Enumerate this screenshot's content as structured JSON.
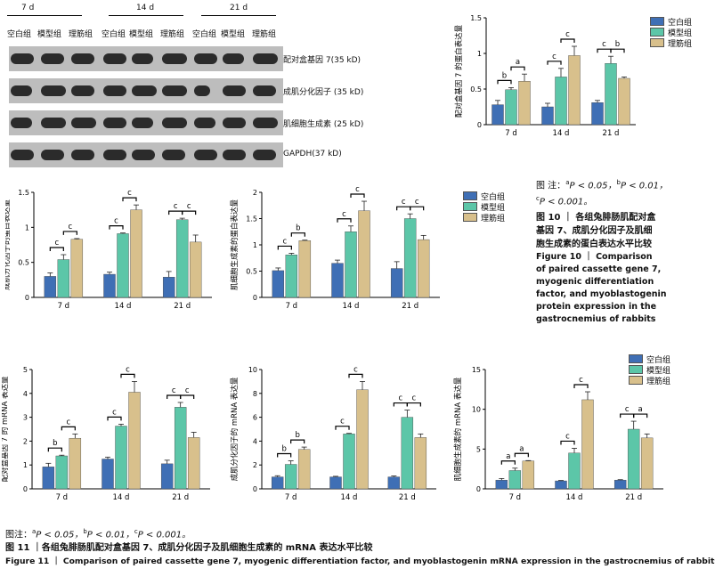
{
  "blot": {
    "time_labels": [
      "7 d",
      "14 d",
      "21 d"
    ],
    "group_labels": [
      "空白组",
      "模型组",
      "理筋组",
      "空白组",
      "模型组",
      "理筋组",
      "空白组",
      "模型组",
      "理筋组"
    ],
    "row_labels": [
      "配对盒基因 7(35 kD)",
      "成肌分化因子 (35 kD)",
      "肌细胞生成素 (25 kD)",
      "GAPDH(37 kD)"
    ]
  },
  "legend": {
    "items": [
      "空白组",
      "模型组",
      "理筋组"
    ],
    "colors": [
      "#3f6fb5",
      "#5cc6a8",
      "#d8c08c"
    ]
  },
  "fig10_caption": {
    "note_prefix": "图 注：",
    "note_a": "P < 0.05，",
    "note_b": "P < 0.01，",
    "note_c": "P < 0.001。",
    "sup_a": "a",
    "sup_b": "b",
    "sup_c": "c",
    "title_cn": "图 10 ｜ 各组兔腓肠肌配对盒基因 7、成肌分化因子及肌细胞生成素的蛋白表达水平比较",
    "title_cn_1": "图 10 ｜ 各组兔腓肠肌配对盒",
    "title_cn_2": "基因 7、成肌分化因子及肌细",
    "title_cn_3": "胞生成素的蛋白表达水平比较",
    "title_en_1": "Figure 10 ｜ Comparison",
    "title_en_2": "of paired cassette gene 7,",
    "title_en_3": "myogenic differentiation",
    "title_en_4": "factor, and myoblastogenin",
    "title_en_5": "protein expression in the",
    "title_en_6": "gastrocnemius of rabbits"
  },
  "fig11_caption": {
    "note_prefix": "图注：",
    "note_a": "P < 0.05，",
    "note_b": "P < 0.01，",
    "note_c": "P < 0.001。",
    "sup_a": "a",
    "sup_b": "b",
    "sup_c": "c",
    "title_cn": "图 11 ｜各组兔腓肠肌配对盒基因 7、成肌分化因子及肌细胞生成素的 mRNA 表达水平比较",
    "title_en": "Figure 11 ｜ Comparison of paired cassette gene 7, myogenic differentiation factor, and myoblastogenin mRNA expression in the gastrocnemius of rabbits"
  },
  "chart_data": [
    {
      "type": "bar",
      "ylabel": "配对盒基因 7 的蛋白表达量",
      "categories": [
        "7 d",
        "14 d",
        "21 d"
      ],
      "ylim": [
        0,
        1.5
      ],
      "yticks": [
        0,
        0.5,
        1.0,
        1.5
      ],
      "series": [
        {
          "name": "空白组",
          "values": [
            0.28,
            0.25,
            0.31
          ],
          "err": [
            0.06,
            0.05,
            0.03
          ]
        },
        {
          "name": "模型组",
          "values": [
            0.49,
            0.67,
            0.86
          ],
          "err": [
            0.03,
            0.12,
            0.1
          ]
        },
        {
          "name": "理筋组",
          "values": [
            0.61,
            0.97,
            0.65
          ],
          "err": [
            0.1,
            0.13,
            0.02
          ]
        }
      ],
      "sig": [
        {
          "cat": 0,
          "from": 0,
          "to": 1,
          "label": "b"
        },
        {
          "cat": 0,
          "from": 1,
          "to": 2,
          "label": "a"
        },
        {
          "cat": 1,
          "from": 0,
          "to": 1,
          "label": "c"
        },
        {
          "cat": 1,
          "from": 1,
          "to": 2,
          "label": "c"
        },
        {
          "cat": 2,
          "from": 0,
          "to": 1,
          "label": "c"
        },
        {
          "cat": 2,
          "from": 1,
          "to": 2,
          "label": "b"
        }
      ]
    },
    {
      "type": "bar",
      "ylabel": "成肌分化因子的蛋白表达量",
      "categories": [
        "7 d",
        "14 d",
        "21 d"
      ],
      "ylim": [
        0,
        1.5
      ],
      "yticks": [
        0,
        0.5,
        1.0,
        1.5
      ],
      "series": [
        {
          "name": "空白组",
          "values": [
            0.3,
            0.33,
            0.29
          ],
          "err": [
            0.05,
            0.03,
            0.08
          ]
        },
        {
          "name": "模型组",
          "values": [
            0.54,
            0.91,
            1.11
          ],
          "err": [
            0.07,
            0.01,
            0.02
          ]
        },
        {
          "name": "理筋组",
          "values": [
            0.83,
            1.25,
            0.79
          ],
          "err": [
            0.01,
            0.07,
            0.1
          ]
        }
      ],
      "sig": [
        {
          "cat": 0,
          "from": 0,
          "to": 1,
          "label": "c"
        },
        {
          "cat": 0,
          "from": 1,
          "to": 2,
          "label": "c"
        },
        {
          "cat": 1,
          "from": 0,
          "to": 1,
          "label": "c"
        },
        {
          "cat": 1,
          "from": 1,
          "to": 2,
          "label": "c"
        },
        {
          "cat": 2,
          "from": 0,
          "to": 1,
          "label": "c"
        },
        {
          "cat": 2,
          "from": 1,
          "to": 2,
          "label": "c"
        }
      ]
    },
    {
      "type": "bar",
      "ylabel": "肌细胞生成素的蛋白表达量",
      "categories": [
        "7 d",
        "14 d",
        "21 d"
      ],
      "ylim": [
        0,
        2.0
      ],
      "yticks": [
        0,
        0.5,
        1.0,
        1.5,
        2.0
      ],
      "series": [
        {
          "name": "空白组",
          "values": [
            0.51,
            0.65,
            0.55
          ],
          "err": [
            0.05,
            0.06,
            0.13
          ]
        },
        {
          "name": "模型组",
          "values": [
            0.81,
            1.25,
            1.5
          ],
          "err": [
            0.03,
            0.11,
            0.09
          ]
        },
        {
          "name": "理筋组",
          "values": [
            1.08,
            1.65,
            1.1
          ],
          "err": [
            0.01,
            0.18,
            0.08
          ]
        }
      ],
      "sig": [
        {
          "cat": 0,
          "from": 0,
          "to": 1,
          "label": "c"
        },
        {
          "cat": 0,
          "from": 1,
          "to": 2,
          "label": "b"
        },
        {
          "cat": 1,
          "from": 0,
          "to": 1,
          "label": "c"
        },
        {
          "cat": 1,
          "from": 1,
          "to": 2,
          "label": "c"
        },
        {
          "cat": 2,
          "from": 0,
          "to": 1,
          "label": "c"
        },
        {
          "cat": 2,
          "from": 1,
          "to": 2,
          "label": "c"
        }
      ]
    },
    {
      "type": "bar",
      "ylabel": "配对盒基因 7 的 mRNA 表达量",
      "categories": [
        "7 d",
        "14 d",
        "21 d"
      ],
      "ylim": [
        0,
        5
      ],
      "yticks": [
        0,
        1,
        2,
        3,
        4,
        5
      ],
      "series": [
        {
          "name": "空白组",
          "values": [
            0.92,
            1.25,
            1.05
          ],
          "err": [
            0.15,
            0.08,
            0.15
          ]
        },
        {
          "name": "模型组",
          "values": [
            1.38,
            2.63,
            3.42
          ],
          "err": [
            0.03,
            0.08,
            0.2
          ]
        },
        {
          "name": "理筋组",
          "values": [
            2.12,
            4.05,
            2.15
          ],
          "err": [
            0.18,
            0.45,
            0.22
          ]
        }
      ],
      "sig": [
        {
          "cat": 0,
          "from": 0,
          "to": 1,
          "label": "b"
        },
        {
          "cat": 0,
          "from": 1,
          "to": 2,
          "label": "c"
        },
        {
          "cat": 1,
          "from": 0,
          "to": 1,
          "label": "c"
        },
        {
          "cat": 1,
          "from": 1,
          "to": 2,
          "label": "c"
        },
        {
          "cat": 2,
          "from": 0,
          "to": 1,
          "label": "c"
        },
        {
          "cat": 2,
          "from": 1,
          "to": 2,
          "label": "c"
        }
      ]
    },
    {
      "type": "bar",
      "ylabel": "成肌分化因子的 mRNA 表达量",
      "categories": [
        "7 d",
        "14 d",
        "21 d"
      ],
      "ylim": [
        0,
        10
      ],
      "yticks": [
        0,
        2,
        4,
        6,
        8,
        10
      ],
      "series": [
        {
          "name": "空白组",
          "values": [
            1.0,
            1.0,
            1.0
          ],
          "err": [
            0.1,
            0.05,
            0.08
          ]
        },
        {
          "name": "模型组",
          "values": [
            2.05,
            4.6,
            6.0
          ],
          "err": [
            0.3,
            0.05,
            0.6
          ]
        },
        {
          "name": "理筋组",
          "values": [
            3.3,
            8.3,
            4.3
          ],
          "err": [
            0.2,
            0.7,
            0.3
          ]
        }
      ],
      "sig": [
        {
          "cat": 0,
          "from": 0,
          "to": 1,
          "label": "b"
        },
        {
          "cat": 0,
          "from": 1,
          "to": 2,
          "label": "b"
        },
        {
          "cat": 1,
          "from": 0,
          "to": 1,
          "label": "c"
        },
        {
          "cat": 1,
          "from": 1,
          "to": 2,
          "label": "c"
        },
        {
          "cat": 2,
          "from": 0,
          "to": 1,
          "label": "c"
        },
        {
          "cat": 2,
          "from": 1,
          "to": 2,
          "label": "c"
        }
      ]
    },
    {
      "type": "bar",
      "ylabel": "肌细胞生成素的 mRNA 表达量",
      "categories": [
        "7 d",
        "14 d",
        "21 d"
      ],
      "ylim": [
        0,
        15
      ],
      "yticks": [
        0,
        5,
        10,
        15
      ],
      "series": [
        {
          "name": "空白组",
          "values": [
            1.1,
            1.0,
            1.1
          ],
          "err": [
            0.2,
            0.05,
            0.05
          ]
        },
        {
          "name": "模型组",
          "values": [
            2.3,
            4.5,
            7.5
          ],
          "err": [
            0.3,
            0.6,
            1.0
          ]
        },
        {
          "name": "理筋组",
          "values": [
            3.5,
            11.2,
            6.4
          ],
          "err": [
            0.05,
            1.0,
            0.5
          ]
        }
      ],
      "sig": [
        {
          "cat": 0,
          "from": 0,
          "to": 1,
          "label": "a"
        },
        {
          "cat": 0,
          "from": 1,
          "to": 2,
          "label": "a"
        },
        {
          "cat": 1,
          "from": 0,
          "to": 1,
          "label": "c"
        },
        {
          "cat": 1,
          "from": 1,
          "to": 2,
          "label": "c"
        },
        {
          "cat": 2,
          "from": 0,
          "to": 1,
          "label": "c"
        },
        {
          "cat": 2,
          "from": 1,
          "to": 2,
          "label": "a"
        }
      ]
    }
  ]
}
